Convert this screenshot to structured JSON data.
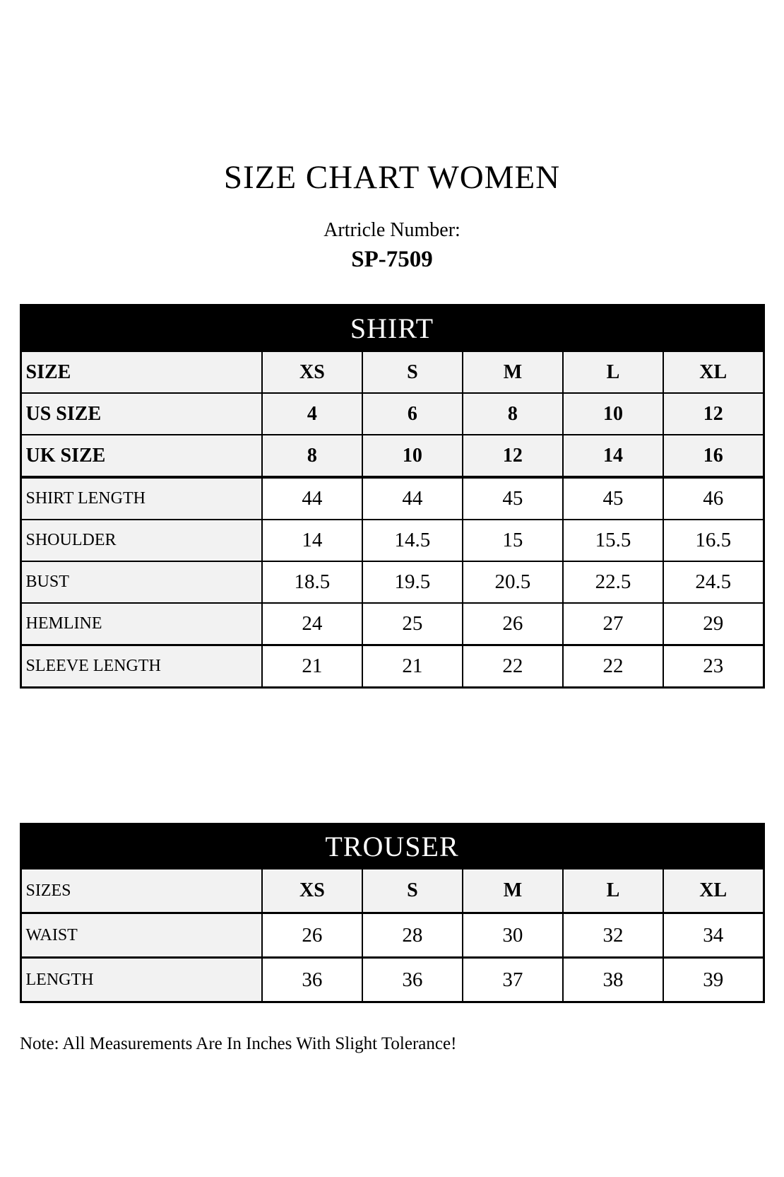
{
  "page": {
    "title": "SIZE CHART WOMEN",
    "article_label": "Artricle Number:",
    "article_number": "SP-7509",
    "note": "Note: All Measurements Are In Inches With Slight Tolerance!"
  },
  "colors": {
    "table_header_bg": "#000000",
    "table_header_text": "#ffffff",
    "label_cell_bg": "#f2f2f2",
    "value_cell_bg": "#ffffff",
    "border": "#000000",
    "page_bg": "#ffffff"
  },
  "tables": {
    "shirt": {
      "title": "SHIRT",
      "rows": [
        {
          "label": "SIZE",
          "values": [
            "XS",
            "S",
            "M",
            "L",
            "XL"
          ]
        },
        {
          "label": "US SIZE",
          "values": [
            "4",
            "6",
            "8",
            "10",
            "12"
          ]
        },
        {
          "label": "UK SIZE",
          "values": [
            "8",
            "10",
            "12",
            "14",
            "16"
          ]
        },
        {
          "label": "SHIRT LENGTH",
          "values": [
            "44",
            "44",
            "45",
            "45",
            "46"
          ]
        },
        {
          "label": "SHOULDER",
          "values": [
            "14",
            "14.5",
            "15",
            "15.5",
            "16.5"
          ]
        },
        {
          "label": "BUST",
          "values": [
            "18.5",
            "19.5",
            "20.5",
            "22.5",
            "24.5"
          ]
        },
        {
          "label": "HEMLINE",
          "values": [
            "24",
            "25",
            "26",
            "27",
            "29"
          ]
        },
        {
          "label": "SLEEVE LENGTH",
          "values": [
            "21",
            "21",
            "22",
            "22",
            "23"
          ]
        }
      ]
    },
    "trouser": {
      "title": "TROUSER",
      "rows": [
        {
          "label": "SIZES",
          "values": [
            "XS",
            "S",
            "M",
            "L",
            "XL"
          ]
        },
        {
          "label": "WAIST",
          "values": [
            "26",
            "28",
            "30",
            "32",
            "34"
          ]
        },
        {
          "label": "LENGTH",
          "values": [
            "36",
            "36",
            "37",
            "38",
            "39"
          ]
        }
      ]
    }
  }
}
